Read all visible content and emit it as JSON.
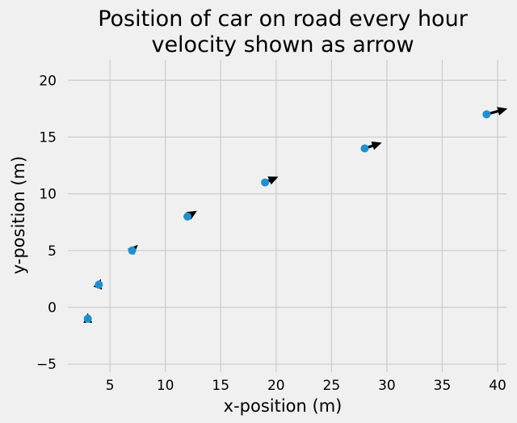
{
  "chart_data": {
    "type": "scatter",
    "title_lines": [
      "Position of car on road every hour",
      "velocity shown as arrow"
    ],
    "xlabel": "x-position (m)",
    "ylabel": "y-position (m)",
    "xlim": [
      1.2,
      40.8
    ],
    "ylim": [
      -5.7,
      21.8
    ],
    "xticks": [
      5,
      10,
      15,
      20,
      25,
      30,
      35,
      40
    ],
    "yticks": [
      -5,
      0,
      5,
      10,
      15,
      20
    ],
    "grid": true,
    "points": {
      "x": [
        3,
        4,
        7,
        12,
        19,
        28,
        39
      ],
      "y": [
        -1,
        2,
        5,
        8,
        11,
        14,
        17
      ]
    },
    "velocity": {
      "vx": [
        0,
        1,
        3,
        5,
        7,
        9,
        11
      ],
      "vy": [
        3,
        3,
        3,
        3,
        3,
        3,
        3
      ]
    },
    "colors": {
      "point": "#1f8fd1",
      "arrow": "#000000",
      "background": "#f0f0f0",
      "grid": "#cbcbcb"
    }
  }
}
